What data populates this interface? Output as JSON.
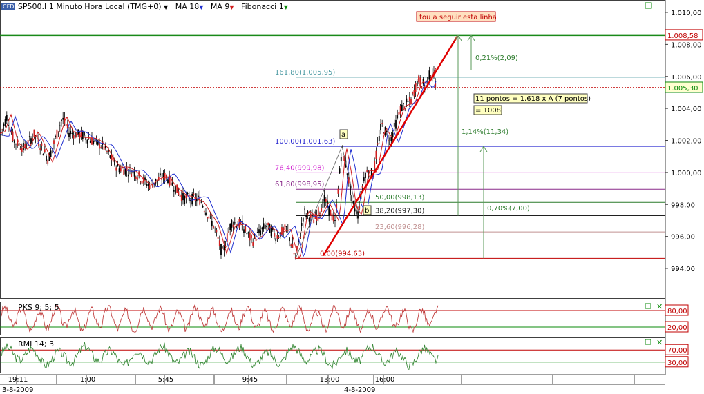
{
  "header": {
    "badge": "CFD",
    "symbol_label": "SP500.I 1 Minuto Hora Local (TMG+0)",
    "studies": [
      {
        "label": "MA 18",
        "color": "#1f2fd0"
      },
      {
        "label": "MA 9",
        "color": "#d01f1f"
      },
      {
        "label": "Fibonacci 1",
        "color": "#0a8a0a"
      }
    ]
  },
  "main_chart": {
    "y_axis": {
      "min": 993,
      "max": 1011,
      "ticks": [
        "1.010,00",
        "1.008,00",
        "1.006,00",
        "1.004,00",
        "1.002,00",
        "1.000,00",
        "998,00",
        "996,00",
        "994,00"
      ],
      "tick_values": [
        1010,
        1008,
        1006,
        1004,
        1002,
        1000,
        998,
        996,
        994
      ]
    },
    "resistance": {
      "value": 1008.58,
      "label": "1.008,58",
      "color": "#1a8a1a"
    },
    "last_price": {
      "value": 1005.3,
      "label": "1.005,30",
      "color": "#c00000"
    },
    "fib_levels": [
      {
        "value": 1005.95,
        "label": "161,80(1.005,95)",
        "color": "#4d9aa3"
      },
      {
        "value": 1001.63,
        "label": "100,00(1.001,63)",
        "color": "#2a2ad0"
      },
      {
        "value": 999.98,
        "label": "76,40(999,98)",
        "color": "#d020d0"
      },
      {
        "value": 998.95,
        "label": "61,80(998,95)",
        "color": "#8a2a8a"
      },
      {
        "value": 998.13,
        "label": "50,00(998,13)",
        "color": "#2a7a2a"
      },
      {
        "value": 997.3,
        "label": "38,20(997,30)",
        "color": "#202020"
      },
      {
        "value": 996.28,
        "label": "23,60(996,28)",
        "color": "#c09090"
      },
      {
        "value": 994.63,
        "label": "0,00(994,63)",
        "color": "#c00000"
      }
    ],
    "annotations": {
      "top_note": "tou a seguir esta linha",
      "pct1": "0,21%(2,09)",
      "pct2": "1,14%(11,34)",
      "pct3": "0,70%(7,00)",
      "note_points": "11 pontos = 1,618 x A (7 pontos)",
      "note_target": "= 1008",
      "wave_a": "a",
      "wave_b": "b"
    }
  },
  "pks_panel": {
    "label": "PKS 9; 5; 5",
    "levels": [
      "80,00",
      "20,00"
    ],
    "level_values": [
      80,
      20
    ]
  },
  "rmi_panel": {
    "label": "RMI 14; 3",
    "levels": [
      "70,00",
      "30,00"
    ],
    "level_values": [
      70,
      30
    ]
  },
  "x_axis": {
    "times": [
      "19:11",
      "1:00",
      "5:45",
      "9:45",
      "13:00",
      "16:00"
    ],
    "dates": [
      "3-8-2009",
      "4-8-2009"
    ]
  },
  "colors": {
    "price_candles": "#000000",
    "up_candle": "#d01f1f",
    "ma_fast": "#d01f1f",
    "ma_slow": "#1f2fd0",
    "trend_line": "#e00000",
    "indicator": "#c04040",
    "rmi": "#3a8a3a"
  }
}
